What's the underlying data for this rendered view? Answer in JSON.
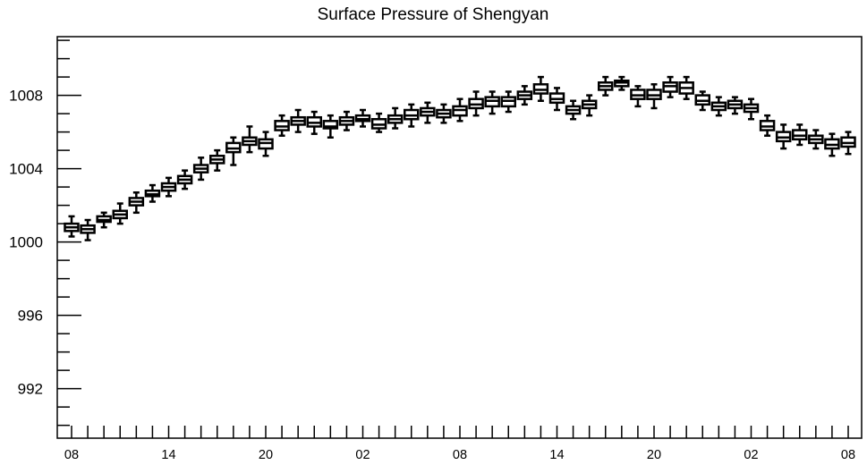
{
  "chart_data": {
    "type": "box",
    "title": "Surface Pressure of Shengyan",
    "x": [
      8,
      9,
      10,
      11,
      12,
      13,
      14,
      15,
      16,
      17,
      18,
      19,
      20,
      21,
      22,
      23,
      0,
      1,
      2,
      3,
      4,
      5,
      6,
      7,
      8,
      9,
      10,
      11,
      12,
      13,
      14,
      15,
      16,
      17,
      18,
      19,
      20,
      21,
      22,
      23,
      0,
      1,
      2,
      3,
      4,
      5,
      6,
      7,
      8
    ],
    "x_tick_labels": [
      "08",
      "14",
      "20",
      "02",
      "08",
      "14",
      "20",
      "02",
      "08"
    ],
    "y_tick_labels": [
      "992",
      "996",
      "1000",
      "1004",
      "1008"
    ],
    "ylim": [
      989.3,
      1011.2
    ],
    "grid": false,
    "min": [
      1000.3,
      1000.1,
      1000.8,
      1001.0,
      1001.6,
      1002.2,
      1002.5,
      1002.9,
      1003.4,
      1003.9,
      1004.2,
      1004.9,
      1004.7,
      1005.8,
      1006.0,
      1005.9,
      1005.7,
      1006.1,
      1006.3,
      1006.0,
      1006.2,
      1006.3,
      1006.5,
      1006.5,
      1006.6,
      1006.9,
      1007.0,
      1007.1,
      1007.5,
      1007.7,
      1007.2,
      1006.7,
      1006.9,
      1008.0,
      1008.3,
      1007.4,
      1007.3,
      1007.9,
      1007.8,
      1007.2,
      1006.9,
      1007.0,
      1006.7,
      1005.8,
      1005.1,
      1005.3,
      1005.1,
      1004.7,
      1004.8
    ],
    "q1": [
      1000.6,
      1000.5,
      1001.1,
      1001.3,
      1002.0,
      1002.5,
      1002.8,
      1003.2,
      1003.8,
      1004.3,
      1004.9,
      1005.3,
      1005.1,
      1006.1,
      1006.4,
      1006.3,
      1006.2,
      1006.4,
      1006.6,
      1006.2,
      1006.5,
      1006.7,
      1006.9,
      1006.8,
      1006.9,
      1007.3,
      1007.4,
      1007.4,
      1007.8,
      1008.1,
      1007.6,
      1007.0,
      1007.3,
      1008.3,
      1008.5,
      1007.8,
      1007.8,
      1008.2,
      1008.1,
      1007.5,
      1007.2,
      1007.3,
      1007.1,
      1006.1,
      1005.5,
      1005.6,
      1005.4,
      1005.1,
      1005.2
    ],
    "median": [
      1000.8,
      1000.7,
      1001.2,
      1001.5,
      1002.2,
      1002.6,
      1003.0,
      1003.4,
      1004.0,
      1004.5,
      1005.1,
      1005.5,
      1005.4,
      1006.3,
      1006.6,
      1006.5,
      1006.3,
      1006.6,
      1006.7,
      1006.4,
      1006.7,
      1006.9,
      1007.1,
      1007.0,
      1007.2,
      1007.5,
      1007.7,
      1007.7,
      1008.0,
      1008.3,
      1007.8,
      1007.2,
      1007.5,
      1008.5,
      1008.7,
      1008.0,
      1008.0,
      1008.5,
      1008.4,
      1007.7,
      1007.4,
      1007.5,
      1007.3,
      1006.3,
      1005.7,
      1005.8,
      1005.6,
      1005.3,
      1005.4
    ],
    "q3": [
      1001.0,
      1000.9,
      1001.4,
      1001.7,
      1002.4,
      1002.8,
      1003.2,
      1003.6,
      1004.2,
      1004.7,
      1005.4,
      1005.7,
      1005.6,
      1006.6,
      1006.8,
      1006.8,
      1006.6,
      1006.8,
      1006.9,
      1006.7,
      1006.9,
      1007.2,
      1007.3,
      1007.2,
      1007.4,
      1007.8,
      1007.9,
      1007.9,
      1008.2,
      1008.6,
      1008.1,
      1007.4,
      1007.7,
      1008.7,
      1008.8,
      1008.3,
      1008.3,
      1008.7,
      1008.7,
      1008.0,
      1007.6,
      1007.7,
      1007.5,
      1006.6,
      1006.0,
      1006.1,
      1005.8,
      1005.6,
      1005.7
    ],
    "max": [
      1001.4,
      1001.2,
      1001.6,
      1002.1,
      1002.7,
      1003.1,
      1003.5,
      1003.9,
      1004.6,
      1005.0,
      1005.7,
      1006.3,
      1006.0,
      1006.9,
      1007.2,
      1007.1,
      1006.9,
      1007.1,
      1007.2,
      1007.0,
      1007.3,
      1007.5,
      1007.6,
      1007.5,
      1007.8,
      1008.2,
      1008.2,
      1008.2,
      1008.5,
      1009.0,
      1008.4,
      1007.7,
      1008.0,
      1009.0,
      1009.0,
      1008.5,
      1008.6,
      1009.0,
      1009.0,
      1008.2,
      1007.9,
      1007.9,
      1007.8,
      1006.9,
      1006.4,
      1006.4,
      1006.1,
      1005.9,
      1006.0
    ],
    "colors": {
      "line": "#000000",
      "box_fill": "#ffffff"
    }
  }
}
